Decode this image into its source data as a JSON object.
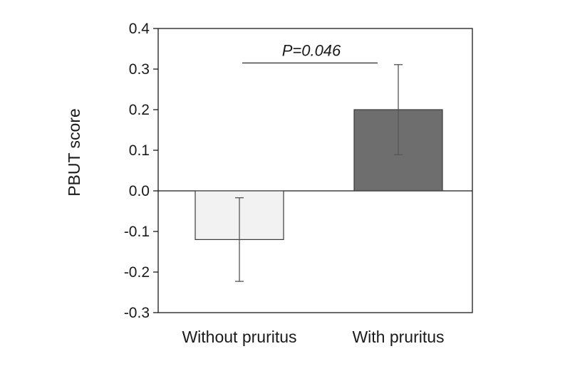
{
  "chart_data": {
    "type": "bar",
    "title": "",
    "xlabel": "",
    "ylabel": "PBUT score",
    "ylim": [
      -0.3,
      0.4
    ],
    "yticks": [
      0.4,
      0.3,
      0.2,
      0.1,
      0.0,
      -0.1,
      -0.2,
      -0.3
    ],
    "ytick_labels": [
      "0.4",
      "0.3",
      "0.2",
      "0.1",
      "0.0",
      "-0.1",
      "-0.2",
      "-0.3"
    ],
    "categories": [
      "Without pruritus",
      "With pruritus"
    ],
    "values": [
      -0.12,
      0.2
    ],
    "error_bars": [
      {
        "low": -0.223,
        "high": -0.017
      },
      {
        "low": 0.089,
        "high": 0.311
      }
    ],
    "bar_colors": [
      "#f2f2f2",
      "#6e6e6e"
    ],
    "grid": false,
    "legend": "none",
    "annotation": {
      "text": "P=0.046",
      "y": 0.315
    }
  }
}
